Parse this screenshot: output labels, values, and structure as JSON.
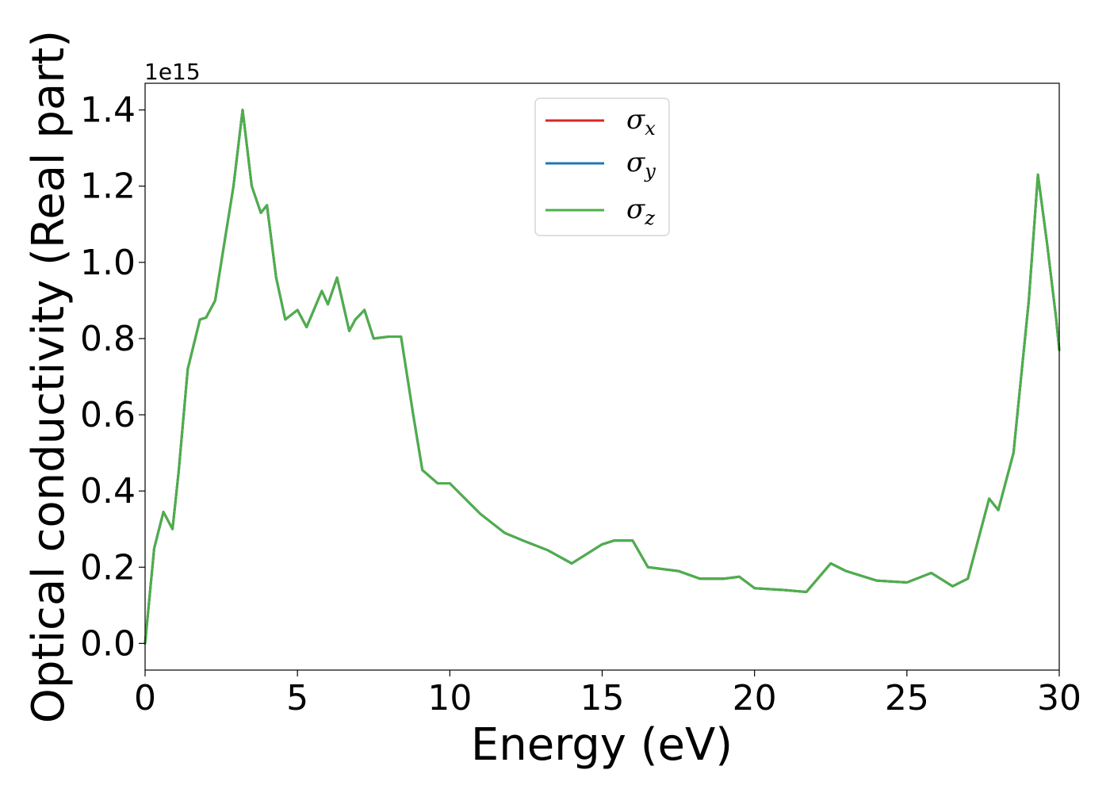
{
  "chart_data": {
    "type": "line",
    "title": "",
    "xlabel": "Energy (eV)",
    "ylabel": "Optical conductivity (Real part)",
    "y_offset_label": "1e15",
    "xlim": [
      0,
      30
    ],
    "ylim": [
      -0.07,
      1.47
    ],
    "xticks": [
      0,
      5,
      10,
      15,
      20,
      25,
      30
    ],
    "xtick_labels": [
      "0",
      "5",
      "10",
      "15",
      "20",
      "25",
      "30"
    ],
    "yticks": [
      0.0,
      0.2,
      0.4,
      0.6,
      0.8,
      1.0,
      1.2,
      1.4
    ],
    "ytick_labels": [
      "0.0",
      "0.2",
      "0.4",
      "0.6",
      "0.8",
      "1.0",
      "1.2",
      "1.4"
    ],
    "grid": false,
    "legend_position": "upper-center",
    "x": [
      0,
      0.3,
      0.6,
      0.9,
      1.1,
      1.4,
      1.8,
      2.0,
      2.3,
      2.6,
      2.9,
      3.2,
      3.5,
      3.8,
      4.0,
      4.3,
      4.6,
      5.0,
      5.3,
      5.8,
      6.0,
      6.3,
      6.7,
      6.9,
      7.2,
      7.5,
      8.0,
      8.4,
      8.8,
      9.1,
      9.6,
      10.0,
      11.0,
      11.8,
      12.4,
      13.2,
      14.0,
      15.0,
      15.4,
      16.0,
      16.5,
      17.5,
      18.2,
      19.0,
      19.5,
      20.0,
      21.0,
      21.7,
      22.5,
      23.0,
      24.0,
      25.0,
      25.8,
      26.5,
      27.0,
      27.7,
      28.0,
      28.5,
      29.0,
      29.3,
      29.6,
      29.9,
      30.0
    ],
    "series": [
      {
        "name": "σx",
        "name_base": "σ",
        "name_sub": "x",
        "color": "#d62728",
        "values": [
          0.0,
          0.25,
          0.345,
          0.3,
          0.45,
          0.72,
          0.85,
          0.855,
          0.9,
          1.05,
          1.2,
          1.4,
          1.2,
          1.13,
          1.15,
          0.96,
          0.85,
          0.875,
          0.83,
          0.925,
          0.89,
          0.96,
          0.82,
          0.85,
          0.875,
          0.8,
          0.805,
          0.805,
          0.6,
          0.455,
          0.42,
          0.42,
          0.34,
          0.29,
          0.27,
          0.245,
          0.21,
          0.26,
          0.27,
          0.27,
          0.2,
          0.19,
          0.17,
          0.17,
          0.175,
          0.145,
          0.14,
          0.135,
          0.21,
          0.19,
          0.165,
          0.16,
          0.185,
          0.15,
          0.17,
          0.38,
          0.35,
          0.5,
          0.9,
          1.23,
          1.05,
          0.85,
          0.77
        ]
      },
      {
        "name": "σy",
        "name_base": "σ",
        "name_sub": "y",
        "color": "#1f77b4",
        "values": [
          0.0,
          0.25,
          0.345,
          0.3,
          0.45,
          0.72,
          0.85,
          0.855,
          0.9,
          1.05,
          1.2,
          1.4,
          1.2,
          1.13,
          1.15,
          0.96,
          0.85,
          0.875,
          0.83,
          0.925,
          0.89,
          0.96,
          0.82,
          0.85,
          0.875,
          0.8,
          0.805,
          0.805,
          0.6,
          0.455,
          0.42,
          0.42,
          0.34,
          0.29,
          0.27,
          0.245,
          0.21,
          0.26,
          0.27,
          0.27,
          0.2,
          0.19,
          0.17,
          0.17,
          0.175,
          0.145,
          0.14,
          0.135,
          0.21,
          0.19,
          0.165,
          0.16,
          0.185,
          0.15,
          0.17,
          0.38,
          0.35,
          0.5,
          0.9,
          1.23,
          1.05,
          0.85,
          0.77
        ]
      },
      {
        "name": "σz",
        "name_base": "σ",
        "name_sub": "z",
        "color": "#4daf4a",
        "values": [
          0.0,
          0.25,
          0.345,
          0.3,
          0.45,
          0.72,
          0.85,
          0.855,
          0.9,
          1.05,
          1.2,
          1.4,
          1.2,
          1.13,
          1.15,
          0.96,
          0.85,
          0.875,
          0.83,
          0.925,
          0.89,
          0.96,
          0.82,
          0.85,
          0.875,
          0.8,
          0.805,
          0.805,
          0.6,
          0.455,
          0.42,
          0.42,
          0.34,
          0.29,
          0.27,
          0.245,
          0.21,
          0.26,
          0.27,
          0.27,
          0.2,
          0.19,
          0.17,
          0.17,
          0.175,
          0.145,
          0.14,
          0.135,
          0.21,
          0.19,
          0.165,
          0.16,
          0.185,
          0.15,
          0.17,
          0.38,
          0.35,
          0.5,
          0.9,
          1.23,
          1.05,
          0.85,
          0.77
        ]
      }
    ]
  }
}
